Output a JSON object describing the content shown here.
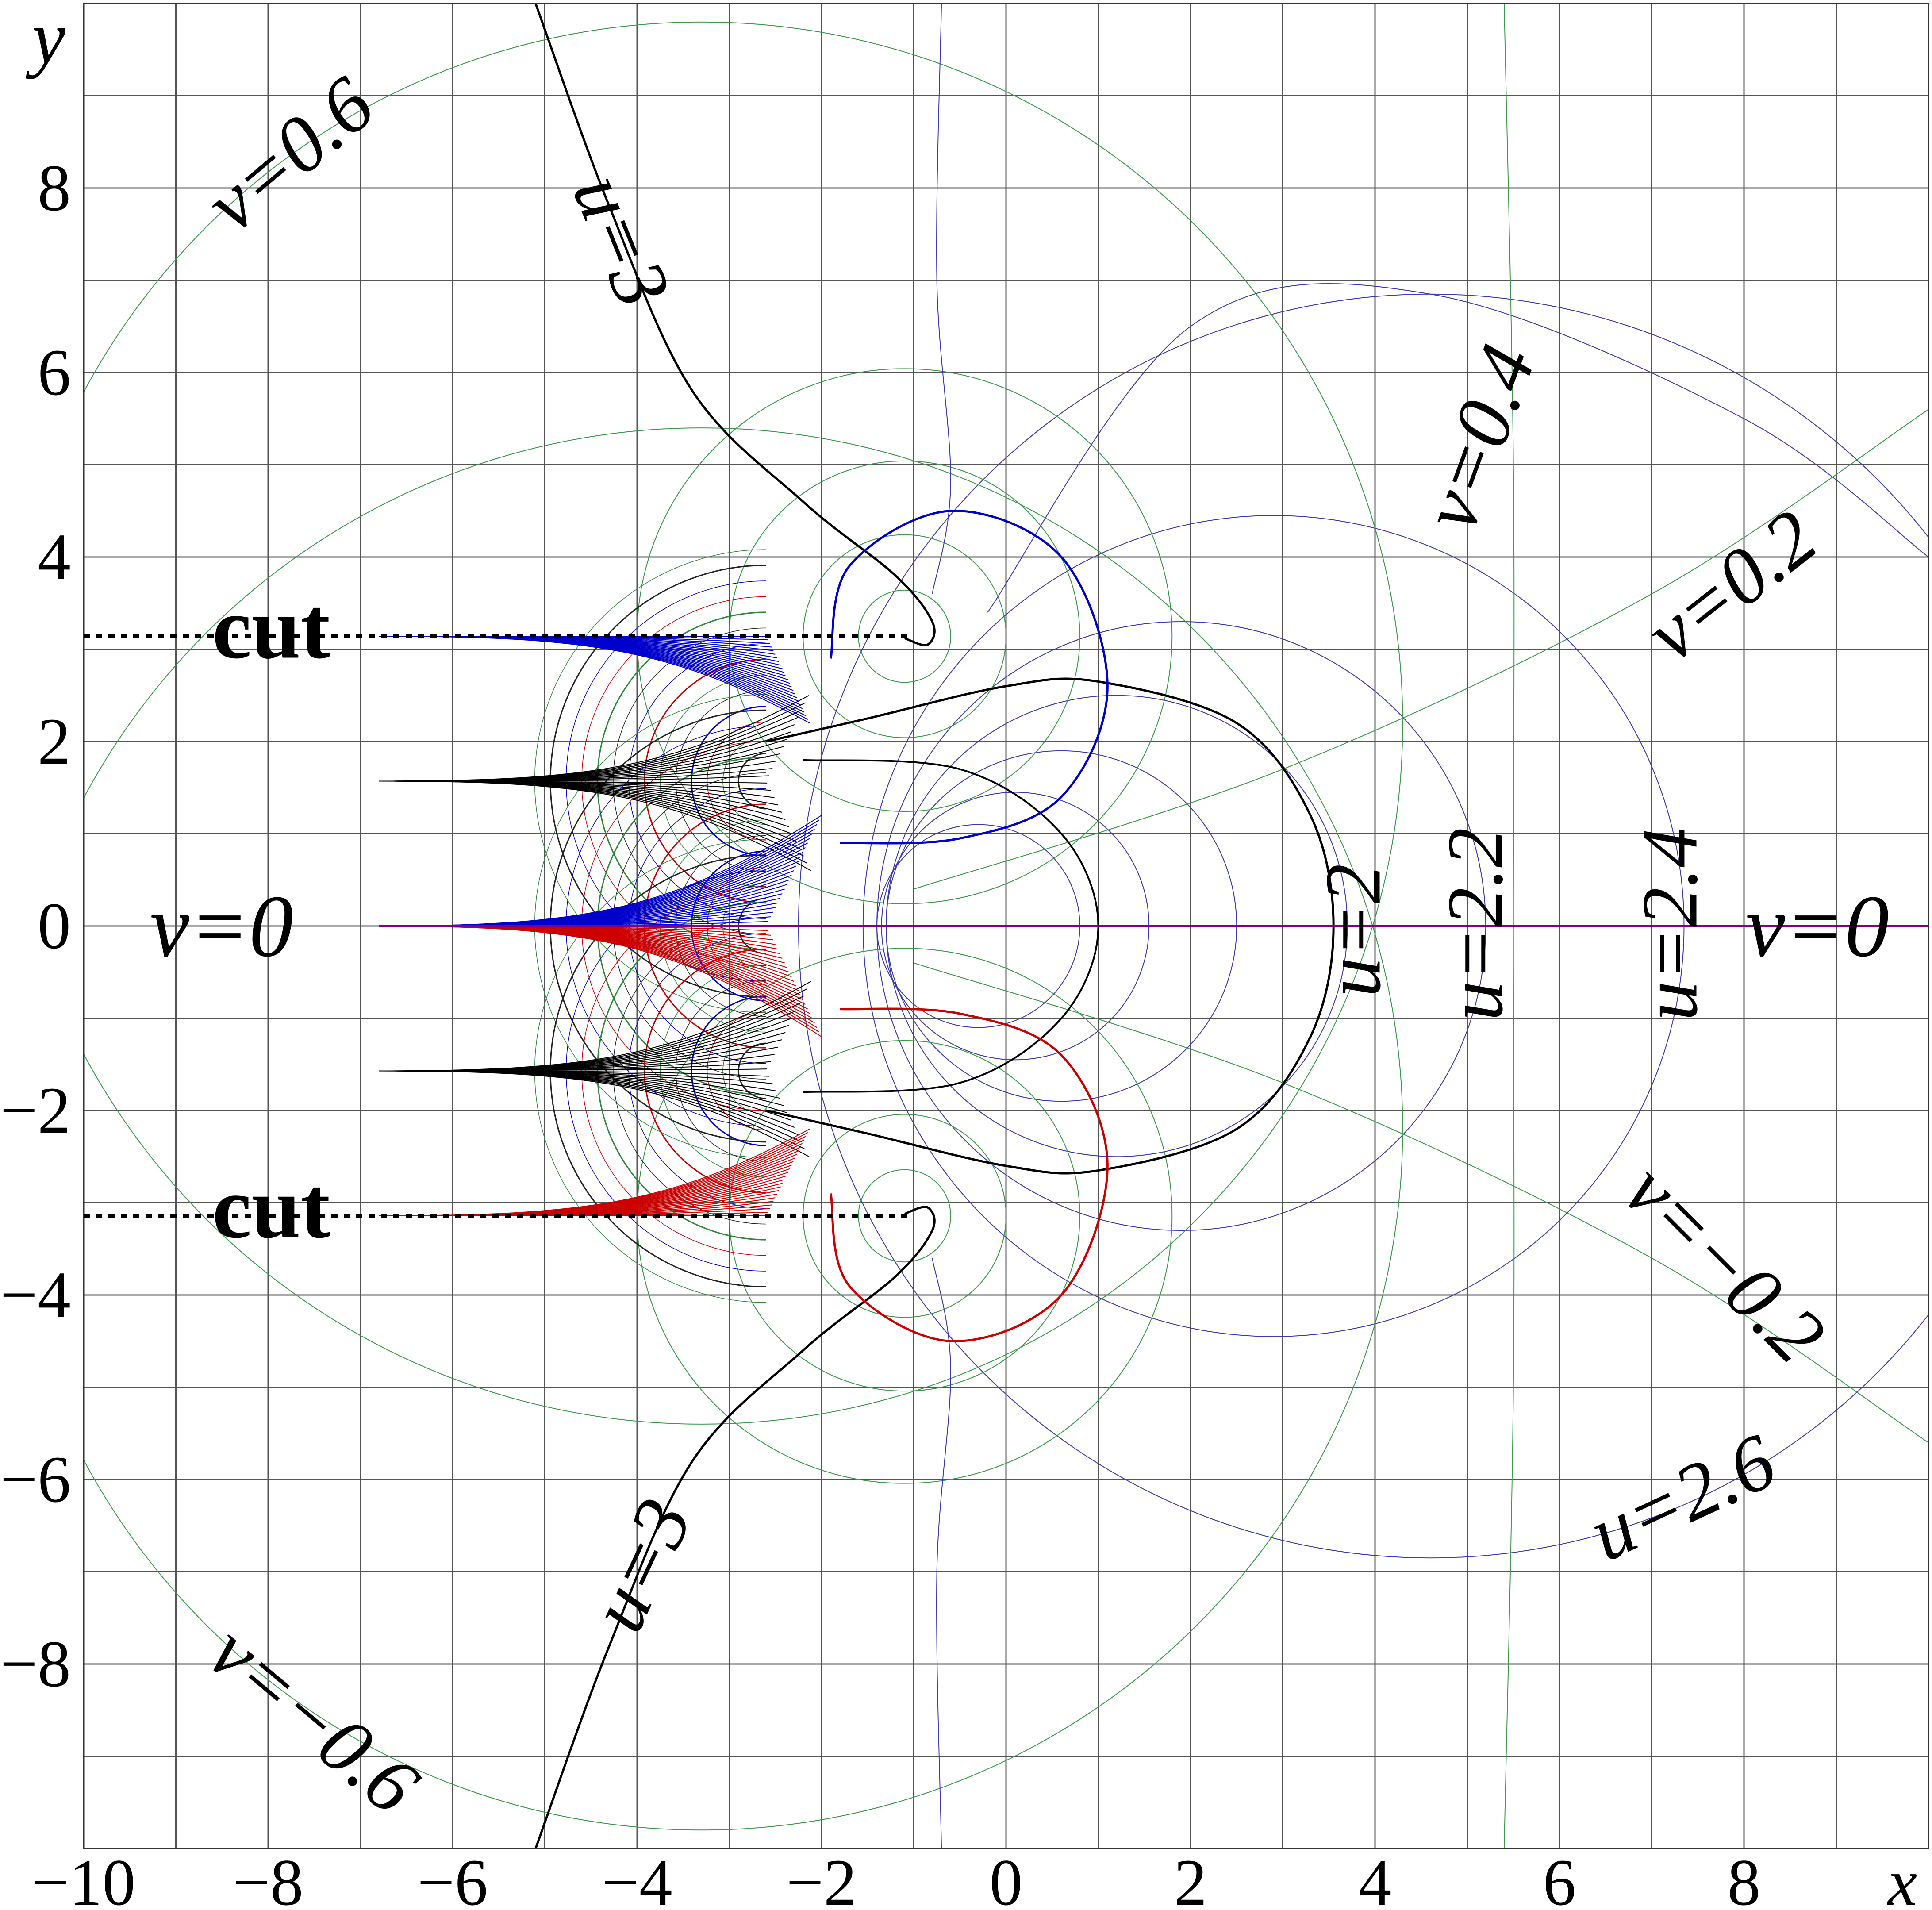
{
  "chart_data": {
    "type": "contour-map",
    "xlim": [
      -10,
      10
    ],
    "ylim": [
      -10,
      10
    ],
    "xticks": [
      {
        "value": -10,
        "label": "−10"
      },
      {
        "value": -8,
        "label": "−8"
      },
      {
        "value": -6,
        "label": "−6"
      },
      {
        "value": -4,
        "label": "−4"
      },
      {
        "value": -2,
        "label": "−2"
      },
      0,
      2,
      4,
      6,
      8
    ],
    "yticks": [
      {
        "value": -8,
        "label": "−8"
      },
      {
        "value": -6,
        "label": "−6"
      },
      {
        "value": -4,
        "label": "−4"
      },
      {
        "value": -2,
        "label": "−2"
      },
      0,
      2,
      4,
      6,
      8
    ],
    "xminor": [
      -9,
      -7,
      -5,
      -3,
      -1,
      1,
      3,
      5,
      7,
      9
    ],
    "yminor": [
      -9,
      -7,
      -5,
      -3,
      -1,
      1,
      3,
      5,
      7,
      9
    ],
    "grid": true,
    "x_label": "x",
    "y_label": "y",
    "annotations": [
      "v=0.6",
      "u=3",
      "v=0.4",
      "v=0.2",
      "cut",
      "cut",
      "v=0",
      "v=0",
      "u=2",
      "u=2.2",
      "u=2.4",
      "v=−0.2",
      "u=2.6",
      "u=3",
      "v=−0.6"
    ]
  }
}
